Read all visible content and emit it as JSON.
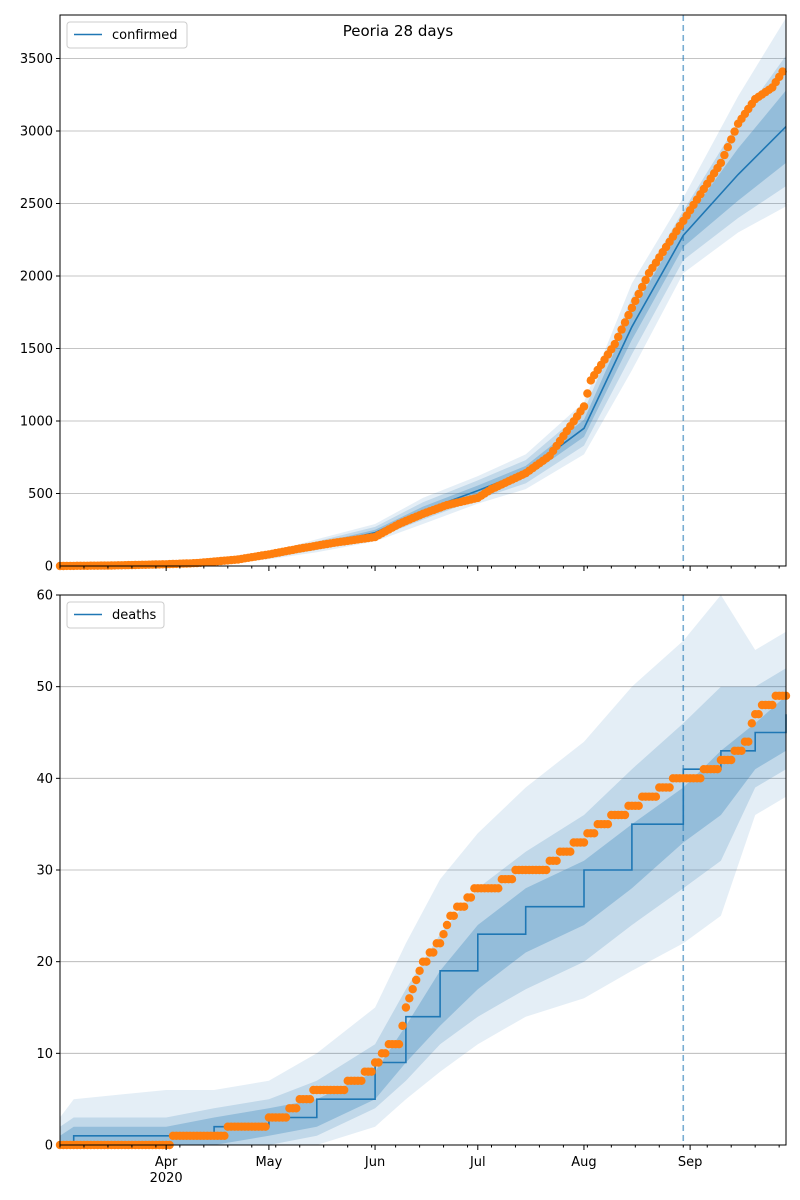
{
  "chart_data": [
    {
      "type": "line",
      "title": "Peoria 28 days",
      "xlabel": "",
      "ylabel": "",
      "x_range": [
        "2020-03-01",
        "2020-09-29"
      ],
      "forecast_start": "2020-08-30",
      "ylim": [
        0,
        3800
      ],
      "yticks": [
        0,
        500,
        1000,
        1500,
        2000,
        2500,
        3000,
        3500
      ],
      "grid": "horizontal",
      "legend": "top-left",
      "x_tick_labels": [
        {
          "date": "2020-04-01",
          "label": "Apr",
          "sub": "2020"
        },
        {
          "date": "2020-05-01",
          "label": "May",
          "sub": ""
        },
        {
          "date": "2020-06-01",
          "label": "Jun",
          "sub": ""
        },
        {
          "date": "2020-07-01",
          "label": "Jul",
          "sub": ""
        },
        {
          "date": "2020-08-01",
          "label": "Aug",
          "sub": ""
        },
        {
          "date": "2020-09-01",
          "label": "Sep",
          "sub": ""
        }
      ],
      "series": [
        {
          "name": "confirmed",
          "kind": "model-line",
          "color": "#1f77b4",
          "points": [
            [
              "2020-03-01",
              0
            ],
            [
              "2020-03-31",
              5
            ],
            [
              "2020-04-15",
              20
            ],
            [
              "2020-05-01",
              70
            ],
            [
              "2020-05-15",
              140
            ],
            [
              "2020-06-01",
              230
            ],
            [
              "2020-06-15",
              380
            ],
            [
              "2020-07-01",
              520
            ],
            [
              "2020-07-15",
              650
            ],
            [
              "2020-08-01",
              950
            ],
            [
              "2020-08-15",
              1650
            ],
            [
              "2020-08-30",
              2280
            ],
            [
              "2020-09-15",
              2700
            ],
            [
              "2020-09-29",
              3030
            ]
          ]
        },
        {
          "name": "",
          "kind": "observed",
          "color": "#ff7f0e",
          "points": [
            [
              "2020-03-01",
              0
            ],
            [
              "2020-03-15",
              3
            ],
            [
              "2020-03-25",
              8
            ],
            [
              "2020-04-01",
              12
            ],
            [
              "2020-04-10",
              20
            ],
            [
              "2020-04-15",
              30
            ],
            [
              "2020-04-22",
              45
            ],
            [
              "2020-05-01",
              80
            ],
            [
              "2020-05-10",
              120
            ],
            [
              "2020-05-20",
              160
            ],
            [
              "2020-06-01",
              200
            ],
            [
              "2020-06-08",
              290
            ],
            [
              "2020-06-15",
              360
            ],
            [
              "2020-06-22",
              420
            ],
            [
              "2020-07-01",
              470
            ],
            [
              "2020-07-05",
              530
            ],
            [
              "2020-07-15",
              640
            ],
            [
              "2020-07-22",
              760
            ],
            [
              "2020-08-01",
              1100
            ],
            [
              "2020-08-03",
              1280
            ],
            [
              "2020-08-10",
              1530
            ],
            [
              "2020-08-15",
              1780
            ],
            [
              "2020-08-20",
              2020
            ],
            [
              "2020-08-25",
              2200
            ],
            [
              "2020-08-30",
              2380
            ],
            [
              "2020-09-05",
              2600
            ],
            [
              "2020-09-10",
              2780
            ],
            [
              "2020-09-15",
              3050
            ],
            [
              "2020-09-20",
              3220
            ],
            [
              "2020-09-25",
              3300
            ],
            [
              "2020-09-28",
              3410
            ]
          ]
        }
      ],
      "bands": [
        {
          "opacity": 0.28,
          "lo": [
            0,
            4,
            16,
            62,
            125,
            210,
            350,
            490,
            610,
            890,
            1560,
            2200,
            2520,
            2780
          ],
          "hi": [
            0,
            6,
            24,
            78,
            155,
            250,
            410,
            555,
            690,
            1010,
            1750,
            2360,
            2880,
            3280
          ]
        },
        {
          "opacity": 0.18,
          "lo": [
            0,
            3,
            12,
            54,
            110,
            190,
            320,
            460,
            570,
            830,
            1460,
            2110,
            2400,
            2620
          ],
          "hi": [
            0,
            8,
            28,
            86,
            170,
            270,
            440,
            590,
            730,
            1070,
            1850,
            2450,
            3060,
            3520
          ]
        },
        {
          "opacity": 0.12,
          "lo": [
            0,
            2,
            8,
            46,
            95,
            170,
            290,
            430,
            530,
            770,
            1350,
            2020,
            2300,
            2480
          ],
          "hi": [
            0,
            10,
            32,
            94,
            185,
            290,
            470,
            620,
            770,
            1130,
            1950,
            2540,
            3240,
            3780
          ]
        }
      ]
    },
    {
      "type": "line",
      "title": "",
      "xlabel": "",
      "ylabel": "",
      "x_range": [
        "2020-03-01",
        "2020-09-29"
      ],
      "forecast_start": "2020-08-30",
      "ylim": [
        0,
        60
      ],
      "yticks": [
        0,
        10,
        20,
        30,
        40,
        50,
        60
      ],
      "grid": "horizontal",
      "legend": "top-left",
      "x_tick_labels": [
        {
          "date": "2020-04-01",
          "label": "Apr",
          "sub": "2020"
        },
        {
          "date": "2020-05-01",
          "label": "May",
          "sub": ""
        },
        {
          "date": "2020-06-01",
          "label": "Jun",
          "sub": ""
        },
        {
          "date": "2020-07-01",
          "label": "Jul",
          "sub": ""
        },
        {
          "date": "2020-08-01",
          "label": "Aug",
          "sub": ""
        },
        {
          "date": "2020-09-01",
          "label": "Sep",
          "sub": ""
        }
      ],
      "series": [
        {
          "name": "deaths",
          "kind": "model-step",
          "color": "#1f77b4",
          "points": [
            [
              "2020-03-01",
              0
            ],
            [
              "2020-03-05",
              1
            ],
            [
              "2020-04-01",
              1
            ],
            [
              "2020-04-15",
              2
            ],
            [
              "2020-05-01",
              3
            ],
            [
              "2020-05-15",
              5
            ],
            [
              "2020-06-01",
              9
            ],
            [
              "2020-06-10",
              14
            ],
            [
              "2020-06-20",
              19
            ],
            [
              "2020-07-01",
              23
            ],
            [
              "2020-07-15",
              26
            ],
            [
              "2020-08-01",
              30
            ],
            [
              "2020-08-15",
              35
            ],
            [
              "2020-08-30",
              41
            ],
            [
              "2020-09-10",
              43
            ],
            [
              "2020-09-20",
              45
            ],
            [
              "2020-09-29",
              47
            ]
          ]
        },
        {
          "name": "",
          "kind": "observed",
          "color": "#ff7f0e",
          "points": [
            [
              "2020-03-01",
              0
            ],
            [
              "2020-03-31",
              0
            ],
            [
              "2020-04-05",
              1
            ],
            [
              "2020-04-17",
              1
            ],
            [
              "2020-04-20",
              2
            ],
            [
              "2020-04-30",
              2
            ],
            [
              "2020-05-01",
              3
            ],
            [
              "2020-05-05",
              3
            ],
            [
              "2020-05-08",
              4
            ],
            [
              "2020-05-12",
              5
            ],
            [
              "2020-05-16",
              6
            ],
            [
              "2020-05-22",
              6
            ],
            [
              "2020-05-26",
              7
            ],
            [
              "2020-05-31",
              8
            ],
            [
              "2020-06-02",
              9
            ],
            [
              "2020-06-05",
              11
            ],
            [
              "2020-06-08",
              11
            ],
            [
              "2020-06-09",
              13
            ],
            [
              "2020-06-11",
              16
            ],
            [
              "2020-06-13",
              18
            ],
            [
              "2020-06-15",
              20
            ],
            [
              "2020-06-18",
              21
            ],
            [
              "2020-06-21",
              23
            ],
            [
              "2020-06-23",
              25
            ],
            [
              "2020-06-27",
              26
            ],
            [
              "2020-06-30",
              28
            ],
            [
              "2020-07-06",
              28
            ],
            [
              "2020-07-10",
              29
            ],
            [
              "2020-07-14",
              30
            ],
            [
              "2020-07-20",
              30
            ],
            [
              "2020-07-23",
              31
            ],
            [
              "2020-07-26",
              32
            ],
            [
              "2020-07-31",
              33
            ],
            [
              "2020-08-03",
              34
            ],
            [
              "2020-08-06",
              35
            ],
            [
              "2020-08-12",
              36
            ],
            [
              "2020-08-15",
              37
            ],
            [
              "2020-08-20",
              38
            ],
            [
              "2020-08-25",
              39
            ],
            [
              "2020-08-28",
              40
            ],
            [
              "2020-09-03",
              40
            ],
            [
              "2020-09-07",
              41
            ],
            [
              "2020-09-12",
              42
            ],
            [
              "2020-09-15",
              43
            ],
            [
              "2020-09-18",
              44
            ],
            [
              "2020-09-20",
              47
            ],
            [
              "2020-09-23",
              48
            ],
            [
              "2020-09-29",
              49
            ]
          ]
        }
      ],
      "bands": [
        {
          "opacity": 0.28,
          "lo": [
            0,
            0,
            0,
            0,
            1,
            2,
            5,
            9,
            13,
            17,
            21,
            24,
            28,
            33,
            36,
            41,
            43
          ],
          "hi": [
            1,
            2,
            2,
            3,
            4,
            5,
            8,
            13,
            19,
            24,
            28,
            31,
            35,
            39,
            43,
            46,
            49
          ]
        },
        {
          "opacity": 0.18,
          "lo": [
            0,
            0,
            0,
            0,
            0,
            1,
            4,
            7,
            11,
            14,
            17,
            20,
            24,
            28,
            31,
            39,
            41
          ],
          "hi": [
            2,
            3,
            3,
            4,
            5,
            7,
            11,
            17,
            23,
            28,
            32,
            36,
            41,
            46,
            50,
            50,
            52
          ]
        },
        {
          "opacity": 0.12,
          "lo": [
            0,
            0,
            0,
            0,
            0,
            0,
            2,
            5,
            8,
            11,
            14,
            16,
            19,
            22,
            25,
            36,
            38
          ],
          "hi": [
            3,
            5,
            6,
            6,
            7,
            10,
            15,
            22,
            29,
            34,
            39,
            44,
            50,
            55,
            60,
            54,
            56
          ]
        }
      ]
    }
  ]
}
